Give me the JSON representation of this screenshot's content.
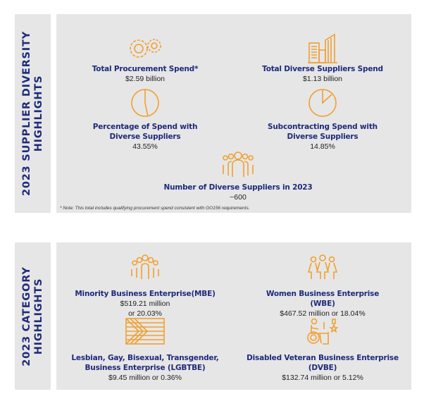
{
  "supplier_section": {
    "heading_line1": "2023 SUPPLIER DIVERSITY",
    "heading_line2": "HIGHLIGHTS",
    "items": [
      {
        "icon": "gears-icon",
        "title": "Total Procurement Spend*",
        "value": "$2.59 billion"
      },
      {
        "icon": "buildings-icon",
        "title": "Total Diverse Suppliers Spend",
        "value": "$1.13 billion"
      },
      {
        "icon": "pie-chart-icon",
        "title_line1": "Percentage of Spend with",
        "title_line2": "Diverse Suppliers",
        "value": "43.55%"
      },
      {
        "icon": "pie-chart-icon",
        "title_line1": "Subcontracting Spend with",
        "title_line2": "Diverse Suppliers",
        "value": "14.85%"
      },
      {
        "icon": "crowd-icon",
        "title": "Number of Diverse Suppliers in 2023",
        "value": "~600"
      }
    ],
    "note": "* Note: This total includes qualifying procurement spend consistent with GO156 requirements."
  },
  "category_section": {
    "heading_line1": "2023 CATEGORY",
    "heading_line2": "HIGHLIGHTS",
    "items": [
      {
        "icon": "group-people-icon",
        "title": "Minority Business Enterprise(MBE)",
        "value_line1": "$519.21 million",
        "value_line2": "or 20.03%"
      },
      {
        "icon": "women-icon",
        "title_line1": "Women Business Enterprise",
        "title_line2": "(WBE)",
        "value": "$467.52 million or 18.04%"
      },
      {
        "icon": "pride-flag-icon",
        "title_line1": "Lesbian, Gay, Bisexual, Transgender,",
        "title_line2": "Business Enterprise (LGBTBE)",
        "value": "$9.45 million or 0.36%"
      },
      {
        "icon": "disabled-veteran-icon",
        "title_line1": "Disabled Veteran Business Enterprise",
        "title_line2": "(DVBE)",
        "value": "$132.74 million or 5.12%"
      }
    ]
  },
  "colors": {
    "navy": "#1f2a7a",
    "orange": "#f0a030",
    "panel": "#e6e6e6"
  }
}
